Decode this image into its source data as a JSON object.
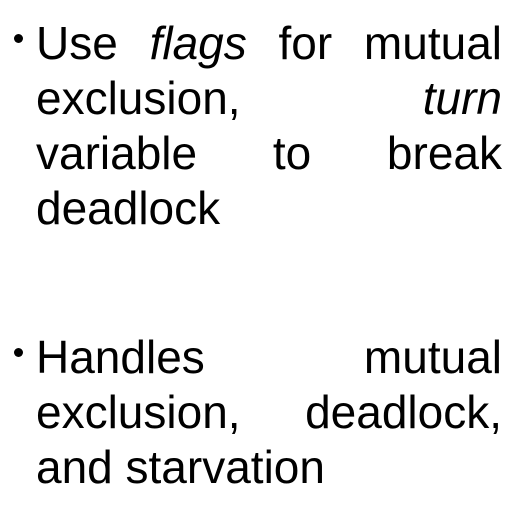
{
  "bullets": [
    {
      "segments": [
        {
          "text": "Use ",
          "italic": false
        },
        {
          "text": "flags",
          "italic": true
        },
        {
          "text": " for mutual exclusion, ",
          "italic": false
        },
        {
          "text": "turn",
          "italic": true
        },
        {
          "text": " variable to break deadlock",
          "italic": false
        }
      ]
    },
    {
      "segments": [
        {
          "text": "Handles mutual exclusion, deadlock, and starvation",
          "italic": false
        }
      ]
    }
  ]
}
